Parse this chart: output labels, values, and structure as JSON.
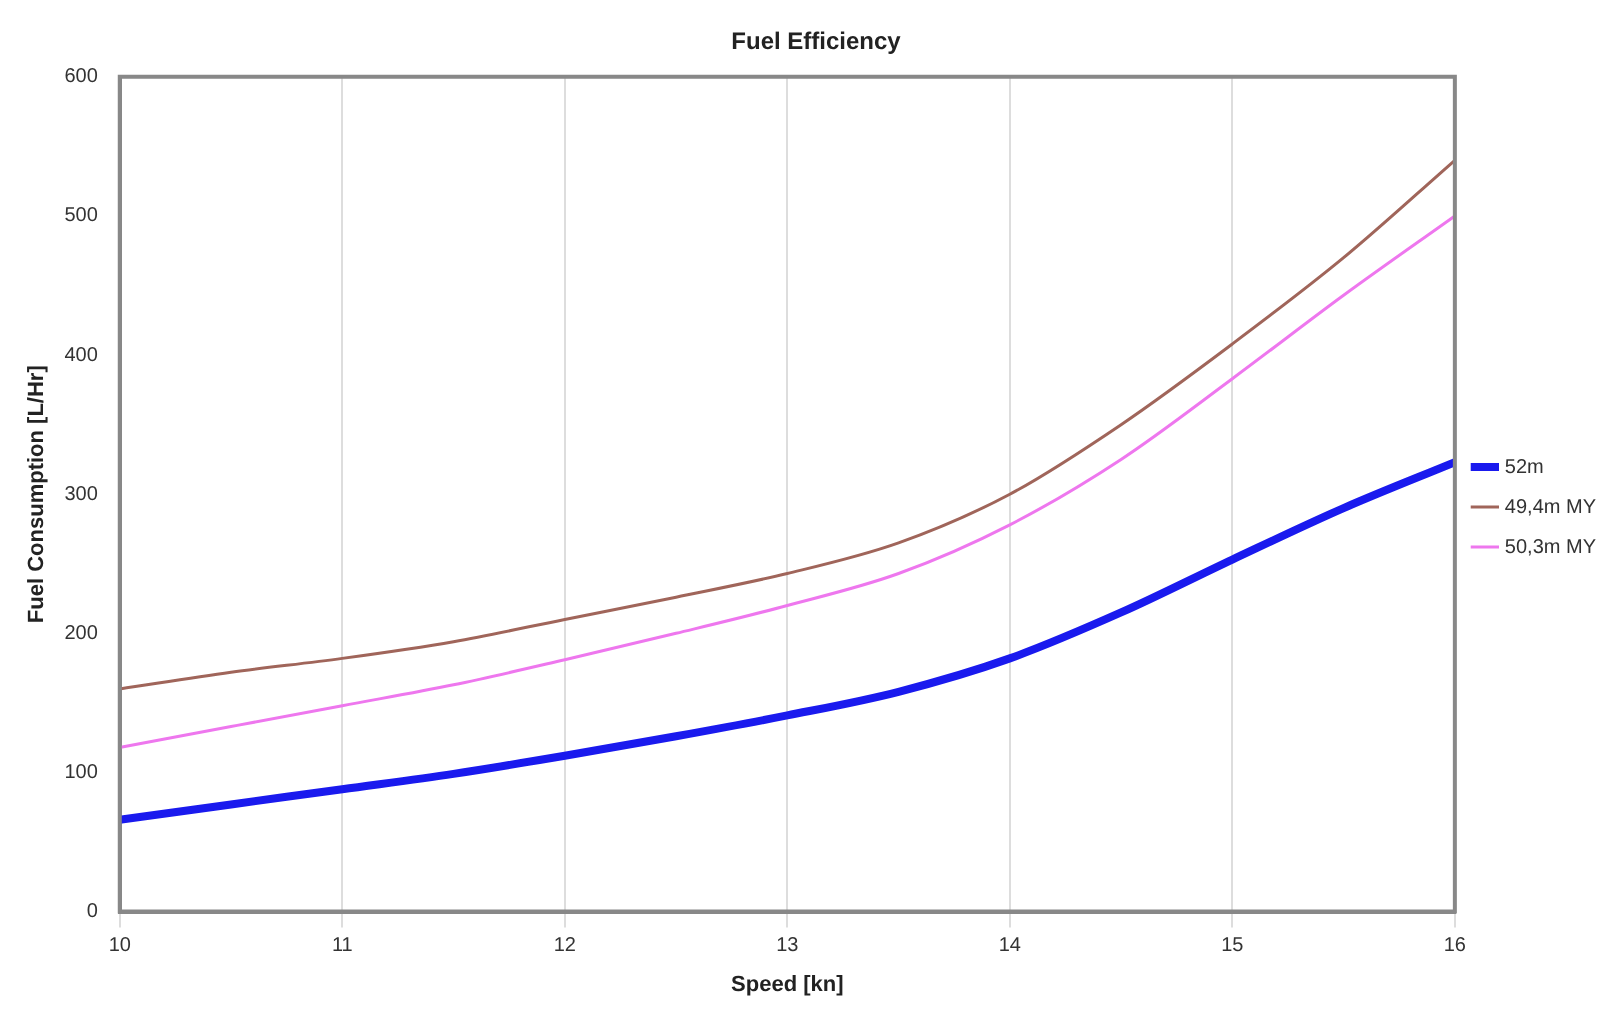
{
  "chart_data": {
    "type": "line",
    "title": "Fuel Efficiency",
    "xlabel": "Speed [kn]",
    "ylabel": "Fuel Consumption [L/Hr]",
    "x": [
      10,
      10.5,
      11,
      11.5,
      12,
      12.5,
      13,
      13.5,
      14,
      14.5,
      15,
      15.5,
      16
    ],
    "series": [
      {
        "name": "52m",
        "color": "#1a1aee",
        "values": [
          66,
          77,
          88,
          99,
          112,
          126,
          141,
          158,
          182,
          215,
          253,
          290,
          323
        ]
      },
      {
        "name": "49,4m MY",
        "color": "#a0655a",
        "values": [
          160,
          172,
          182,
          194,
          210,
          226,
          243,
          265,
          300,
          350,
          408,
          470,
          540
        ]
      },
      {
        "name": "50,3m MY",
        "color": "#ee77ee",
        "values": [
          118,
          133,
          148,
          163,
          181,
          200,
          220,
          243,
          278,
          325,
          383,
          443,
          500
        ]
      }
    ],
    "xlim": [
      10,
      16
    ],
    "xticks": [
      10,
      11,
      12,
      13,
      14,
      15,
      16
    ],
    "ylim": [
      0,
      600
    ],
    "yticks": [
      0,
      100,
      200,
      300,
      400,
      500,
      600
    ],
    "grid": "x",
    "legend": "right",
    "marker": "none",
    "line_style": "solid"
  }
}
